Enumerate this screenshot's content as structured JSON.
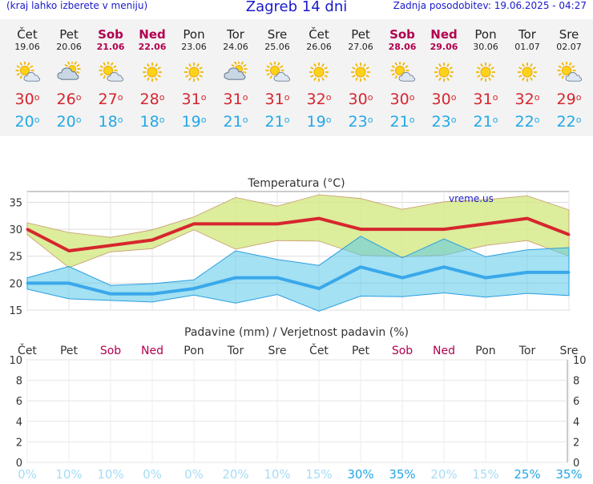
{
  "header": {
    "menu_hint": "(kraj lahko izberete v meniju)",
    "title": "Zagreb 14 dni",
    "updated": "Zadnja posodobitev: 19.06.2025 - 04:27"
  },
  "colors": {
    "max": "#d6262e",
    "min": "#24a8e6",
    "weekend": "#b1004f"
  },
  "days": [
    {
      "name": "Čet",
      "date": "19.06",
      "weekend": false,
      "icon": "partly-cloudy-icon",
      "max": "30",
      "min": "20"
    },
    {
      "name": "Pet",
      "date": "20.06",
      "weekend": false,
      "icon": "cloudy-sun-icon",
      "max": "26",
      "min": "20"
    },
    {
      "name": "Sob",
      "date": "21.06",
      "weekend": true,
      "icon": "partly-cloudy-icon",
      "max": "27",
      "min": "18"
    },
    {
      "name": "Ned",
      "date": "22.06",
      "weekend": true,
      "icon": "sunny-icon",
      "max": "28",
      "min": "18"
    },
    {
      "name": "Pon",
      "date": "23.06",
      "weekend": false,
      "icon": "sunny-icon",
      "max": "31",
      "min": "19"
    },
    {
      "name": "Tor",
      "date": "24.06",
      "weekend": false,
      "icon": "cloudy-sun-icon",
      "max": "31",
      "min": "21"
    },
    {
      "name": "Sre",
      "date": "25.06",
      "weekend": false,
      "icon": "partly-cloudy-icon",
      "max": "31",
      "min": "21"
    },
    {
      "name": "Čet",
      "date": "26.06",
      "weekend": false,
      "icon": "sunny-icon",
      "max": "32",
      "min": "19"
    },
    {
      "name": "Pet",
      "date": "27.06",
      "weekend": false,
      "icon": "sunny-icon",
      "max": "30",
      "min": "23"
    },
    {
      "name": "Sob",
      "date": "28.06",
      "weekend": true,
      "icon": "partly-cloudy-icon",
      "max": "30",
      "min": "21"
    },
    {
      "name": "Ned",
      "date": "29.06",
      "weekend": true,
      "icon": "sunny-icon",
      "max": "30",
      "min": "23"
    },
    {
      "name": "Pon",
      "date": "30.06",
      "weekend": false,
      "icon": "sunny-icon",
      "max": "31",
      "min": "21"
    },
    {
      "name": "Tor",
      "date": "01.07",
      "weekend": false,
      "icon": "sunny-icon",
      "max": "32",
      "min": "22"
    },
    {
      "name": "Sre",
      "date": "02.07",
      "weekend": false,
      "icon": "partly-cloudy-icon",
      "max": "29",
      "min": "22"
    }
  ],
  "chart_data": [
    {
      "type": "line",
      "title": "Temperatura (°C)",
      "watermark": "vreme.us",
      "ylim": [
        15,
        37
      ],
      "yticks": [
        "15",
        "20",
        "25",
        "30",
        "35"
      ],
      "grid": true,
      "series": [
        {
          "values": [
            30,
            26,
            27,
            28,
            31,
            31,
            31,
            32,
            30,
            30,
            30,
            31,
            32,
            29
          ]
        },
        {
          "values": [
            20,
            20,
            18,
            18,
            19,
            21,
            21,
            19,
            23,
            21,
            23,
            21,
            22,
            22
          ]
        }
      ],
      "max_band": {
        "upper": [
          31.2,
          29.4,
          28.5,
          29.9,
          32.3,
          35.9,
          34.3,
          36.4,
          35.7,
          33.7,
          35.1,
          35.5,
          36.2,
          33.6
        ],
        "lower": [
          29.0,
          22.9,
          25.8,
          26.4,
          29.9,
          26.3,
          27.9,
          27.8,
          25.2,
          24.9,
          25.2,
          27.0,
          27.9,
          25.0
        ]
      },
      "min_band": {
        "upper": [
          21.0,
          23.1,
          19.6,
          19.9,
          20.6,
          26.0,
          24.4,
          23.3,
          28.7,
          24.7,
          28.2,
          24.9,
          26.2,
          26.6
        ],
        "lower": [
          18.9,
          17.1,
          16.8,
          16.5,
          17.8,
          16.3,
          17.9,
          14.8,
          17.6,
          17.5,
          18.2,
          17.4,
          18.1,
          17.7
        ]
      }
    },
    {
      "type": "bar",
      "title": "Padavine (mm) / Verjetnost padavin (%)",
      "ylim": [
        0,
        10
      ],
      "yticks": [
        "0",
        "2",
        "4",
        "6",
        "8",
        "10"
      ],
      "grid": true,
      "categories": [
        "Čet",
        "Pet",
        "Sob",
        "Ned",
        "Pon",
        "Tor",
        "Sre",
        "Čet",
        "Pet",
        "Sob",
        "Ned",
        "Pon",
        "Tor",
        "Sre"
      ],
      "weekend": [
        false,
        false,
        true,
        true,
        false,
        false,
        false,
        false,
        false,
        true,
        true,
        false,
        false,
        false
      ],
      "values": [
        0,
        0,
        0,
        0,
        0,
        0,
        0,
        0,
        0,
        0,
        0,
        0,
        0,
        0
      ],
      "probability": [
        "0%",
        "10%",
        "10%",
        "0%",
        "0%",
        "20%",
        "10%",
        "15%",
        "30%",
        "35%",
        "20%",
        "15%",
        "25%",
        "35%"
      ],
      "probability_values": [
        0,
        10,
        10,
        0,
        0,
        20,
        10,
        15,
        30,
        35,
        20,
        15,
        25,
        35
      ]
    }
  ]
}
